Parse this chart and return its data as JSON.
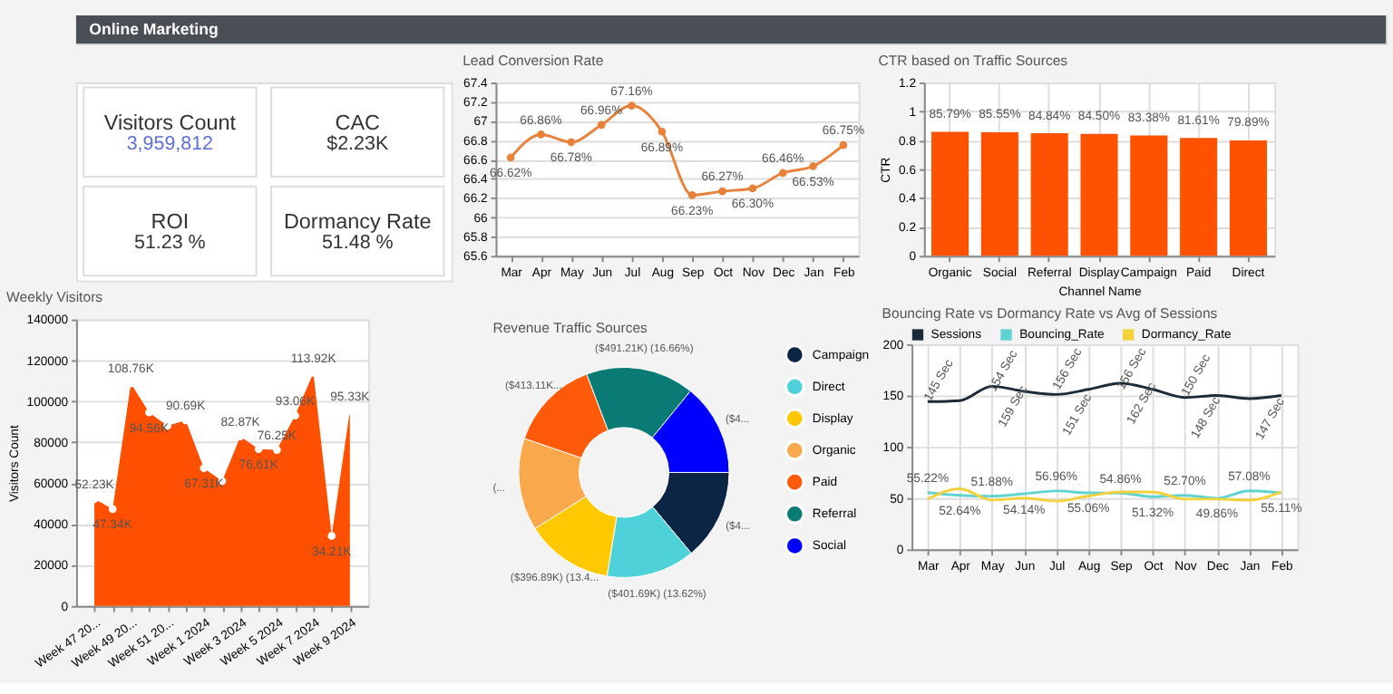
{
  "chart_data": [
    {
      "type": "other",
      "title": "Online Marketing",
      "annotations": [
        "Visitors Count",
        "3,959,812",
        "CAC",
        "$2.23K",
        "ROI",
        "51.23 %",
        "Dormancy Rate",
        "51.48 %"
      ],
      "colors": [
        "#5b6fd6",
        "#333333",
        "#333333",
        "#333333"
      ]
    },
    {
      "type": "line",
      "title": "Lead Conversion Rate",
      "categories": [
        "Mar",
        "Apr",
        "May",
        "Jun",
        "Jul",
        "Aug",
        "Sep",
        "Oct",
        "Nov",
        "Dec",
        "Jan",
        "Feb"
      ],
      "series": [
        {
          "color": "#e8813a",
          "values": [
            66.62,
            66.86,
            66.78,
            66.96,
            67.16,
            66.89,
            66.23,
            66.27,
            66.3,
            66.46,
            66.53,
            66.75
          ],
          "value_labels": [
            "66.62%",
            "66.86%",
            "66.78%",
            "66.96%",
            "67.16%",
            "66.89%",
            "66.23%",
            "66.27%",
            "66.30%",
            "66.46%",
            "66.53%",
            "66.75%"
          ]
        }
      ],
      "ylim": [
        65.6,
        67.4
      ],
      "yticks": [
        65.6,
        65.8,
        66,
        66.2,
        66.4,
        66.6,
        66.8,
        67,
        67.2,
        67.4
      ],
      "grid": "y",
      "marker": "circle",
      "line_style": "solid"
    },
    {
      "type": "bar",
      "title": "CTR based on Traffic Sources",
      "categories": [
        "Organic",
        "Social",
        "Referral",
        "Display",
        "Campaign",
        "Paid",
        "Direct"
      ],
      "values": [
        0.8579,
        0.8555,
        0.8484,
        0.845,
        0.8338,
        0.8161,
        0.7989
      ],
      "value_labels": [
        "85.79%",
        "85.55%",
        "84.84%",
        "84.50%",
        "83.38%",
        "81.61%",
        "79.89%"
      ],
      "color": "#ff5200",
      "xlabel": "Channel Name",
      "ylabel": "CTR",
      "ylim": [
        0,
        1.2
      ],
      "yticks": [
        0,
        0.2,
        0.4,
        0.6,
        0.8,
        1,
        1.2
      ],
      "grid": true
    },
    {
      "type": "area",
      "title": "Weekly Visitors",
      "categories": [
        "Week 47 20...",
        null,
        "Week 49 20...",
        null,
        "Week 51 20...",
        null,
        "Week 1 2024",
        null,
        "Week 3 2024",
        null,
        "Week 5 2024",
        null,
        "Week 7 2024",
        null,
        "Week 9 2024"
      ],
      "series": [
        {
          "color": "#ff4f00",
          "values": [
            52230,
            47340,
            108760,
            94560,
            88000,
            90690,
            67310,
            61000,
            82870,
            76610,
            76250,
            93060,
            113920,
            34210,
            95330
          ],
          "value_labels": [
            "52.23K",
            "47.34K",
            "108.76K",
            "94.56K",
            null,
            "90.69K",
            "67.31K",
            null,
            "82.87K",
            "76.61K",
            "76.25K",
            "93.06K",
            "113.92K",
            "34.21K",
            "95.33K"
          ]
        }
      ],
      "ylabel": "Visitors Count",
      "ylim": [
        0,
        140000
      ],
      "yticks": [
        0,
        20000,
        40000,
        60000,
        80000,
        100000,
        120000,
        140000
      ],
      "grid": "y",
      "marker": "circle"
    },
    {
      "type": "donut",
      "title": "Revenue Traffic Sources",
      "categories": [
        "Campaign",
        "Direct",
        "Display",
        "Organic",
        "Paid",
        "Referral",
        "Social"
      ],
      "values": [
        13.95,
        13.62,
        13.46,
        14.2,
        14.01,
        16.66,
        14.1
      ],
      "colors": [
        "#0b2545",
        "#4fd1d9",
        "#ffc800",
        "#f9a94b",
        "#ff5a0a",
        "#0a7a75",
        "#0000ff"
      ],
      "value_labels": [
        "($4...",
        "($401.69K) (13.62%)",
        "($396.89K) (13.4...",
        "(...",
        "($413.11K...",
        "($491.21K) (16.66%)",
        "($4..."
      ],
      "legend": "right"
    },
    {
      "type": "line",
      "title": "Bouncing Rate vs Dormancy Rate vs Avg of Sessions",
      "categories": [
        "Mar",
        "Apr",
        "May",
        "Jun",
        "Jul",
        "Aug",
        "Sep",
        "Oct",
        "Nov",
        "Dec",
        "Jan",
        "Feb"
      ],
      "series": [
        {
          "name": "Sessions",
          "color": "#1c2b3a",
          "values": [
            144,
            145,
            159,
            154,
            151,
            156,
            162,
            156,
            148,
            150,
            147,
            150
          ],
          "value_labels": [
            null,
            "145 Sec",
            "159 Sec",
            "154 Sec",
            "151 Sec",
            "156 Sec",
            "162 Sec",
            "156 Sec",
            "148 Sec",
            "150 Sec",
            "147 Sec",
            null
          ]
        },
        {
          "name": "Bouncing_Rate",
          "color": "#5fd3d0",
          "values": [
            55.22,
            52.64,
            51.88,
            54.14,
            56.96,
            55.06,
            54.86,
            51.32,
            52.7,
            49.86,
            57.08,
            55.11
          ],
          "value_labels": [
            "55.22%",
            "52.64%",
            "51.88%",
            "54.14%",
            "56.96%",
            "55.06%",
            "54.86%",
            "51.32%",
            "52.70%",
            "49.86%",
            "57.08%",
            "55.11%"
          ]
        },
        {
          "name": "Dormancy_Rate",
          "color": "#f2d13a",
          "values": [
            49,
            59,
            48,
            50,
            47,
            52,
            56,
            56,
            49,
            49,
            48,
            56
          ]
        }
      ],
      "ylim": [
        0,
        200
      ],
      "yticks": [
        0,
        50,
        100,
        150,
        200
      ],
      "grid": true,
      "legend": "top",
      "marker": "none"
    }
  ]
}
